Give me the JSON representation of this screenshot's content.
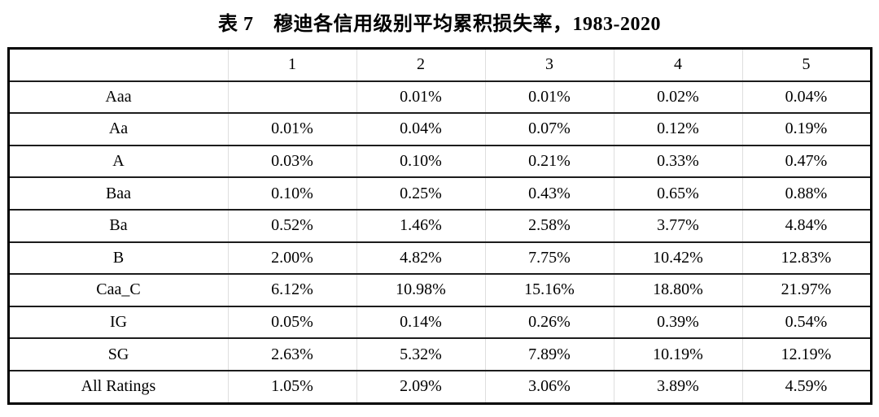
{
  "page": {
    "title": "表 7　穆迪各信用级别平均累积损失率，1983-2020"
  },
  "chart_data": {
    "type": "table",
    "title": "表 7　穆迪各信用级别平均累积损失率，1983-2020",
    "columns": [
      "",
      "1",
      "2",
      "3",
      "4",
      "5"
    ],
    "rows": [
      {
        "label": "Aaa",
        "values": [
          "",
          "0.01%",
          "0.01%",
          "0.02%",
          "0.04%"
        ]
      },
      {
        "label": "Aa",
        "values": [
          "0.01%",
          "0.04%",
          "0.07%",
          "0.12%",
          "0.19%"
        ]
      },
      {
        "label": "A",
        "values": [
          "0.03%",
          "0.10%",
          "0.21%",
          "0.33%",
          "0.47%"
        ]
      },
      {
        "label": "Baa",
        "values": [
          "0.10%",
          "0.25%",
          "0.43%",
          "0.65%",
          "0.88%"
        ]
      },
      {
        "label": "Ba",
        "values": [
          "0.52%",
          "1.46%",
          "2.58%",
          "3.77%",
          "4.84%"
        ]
      },
      {
        "label": "B",
        "values": [
          "2.00%",
          "4.82%",
          "7.75%",
          "10.42%",
          "12.83%"
        ]
      },
      {
        "label": "Caa_C",
        "values": [
          "6.12%",
          "10.98%",
          "15.16%",
          "18.80%",
          "21.97%"
        ]
      },
      {
        "label": "IG",
        "values": [
          "0.05%",
          "0.14%",
          "0.26%",
          "0.39%",
          "0.54%"
        ]
      },
      {
        "label": "SG",
        "values": [
          "2.63%",
          "5.32%",
          "7.89%",
          "10.19%",
          "12.19%"
        ]
      },
      {
        "label": "All Ratings",
        "values": [
          "1.05%",
          "2.09%",
          "3.06%",
          "3.89%",
          "4.59%"
        ]
      }
    ]
  }
}
